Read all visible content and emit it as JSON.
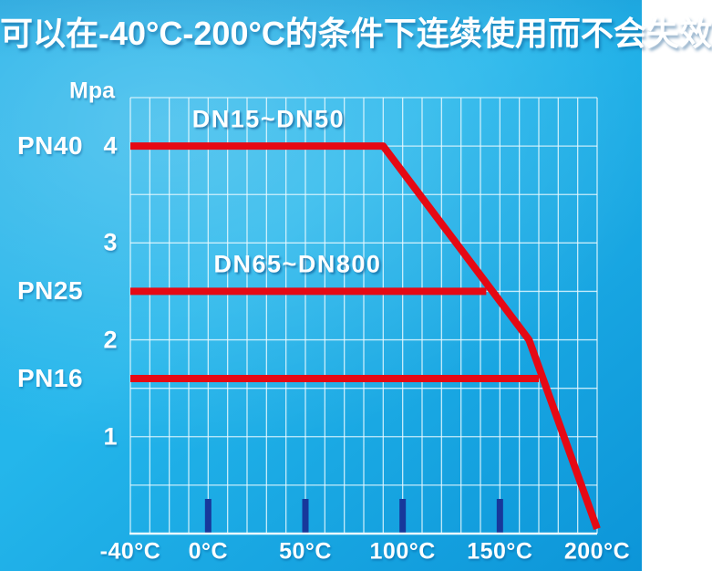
{
  "title": "可以在-40°C-200°C的条件下连续使用而不会失效",
  "colors": {
    "background_light": "#3cc6f1",
    "background_mid": "#1fafe7",
    "background_dark": "#0c95d8",
    "grid_line": "#eafaff",
    "curve_red": "#e60914",
    "tick_mark_navy": "#17389b",
    "text": "#ffffff"
  },
  "chart_data": {
    "type": "line",
    "title": "可以在-40°C-200°C的条件下连续使用而不会失效",
    "ylabel": "Mpa",
    "xlabel_unit": "°C",
    "xlim": [
      -40,
      200
    ],
    "ylim": [
      0,
      4.5
    ],
    "x_grid_step": 10,
    "y_grid_step": 0.5,
    "grid": true,
    "legend_position": "none",
    "x_ticks": [
      {
        "t": -40,
        "label": "-40°C"
      },
      {
        "t": 0,
        "label": "0°C"
      },
      {
        "t": 50,
        "label": "50°C"
      },
      {
        "t": 100,
        "label": "100°C"
      },
      {
        "t": 150,
        "label": "150°C"
      },
      {
        "t": 200,
        "label": "200°C"
      }
    ],
    "major_x_marks": [
      0,
      50,
      100,
      150
    ],
    "y_ticks": [
      {
        "mpa": 1,
        "label": "1"
      },
      {
        "mpa": 2,
        "label": "2"
      },
      {
        "mpa": 3,
        "label": "3"
      },
      {
        "mpa": 4,
        "label": "4"
      }
    ],
    "pn_labels": [
      {
        "mpa": 4.0,
        "label": "PN40"
      },
      {
        "mpa": 2.5,
        "label": "PN25"
      },
      {
        "mpa": 1.6,
        "label": "PN16"
      }
    ],
    "series": [
      {
        "name": "PN40 (DN15~DN50)",
        "points": [
          [
            -40,
            4.0
          ],
          [
            90,
            4.0
          ],
          [
            165,
            2.0
          ],
          [
            200,
            0.05
          ]
        ]
      },
      {
        "name": "PN25 (DN65~DN800)",
        "points": [
          [
            -40,
            2.5
          ],
          [
            143,
            2.5
          ]
        ]
      },
      {
        "name": "PN16",
        "points": [
          [
            -40,
            1.6
          ],
          [
            170,
            1.6
          ]
        ]
      }
    ],
    "annotations": [
      {
        "t": 31,
        "mpa": 4.27,
        "label": "DN15~DN50"
      },
      {
        "t": 46,
        "mpa": 2.78,
        "label": "DN65~DN800"
      }
    ]
  }
}
